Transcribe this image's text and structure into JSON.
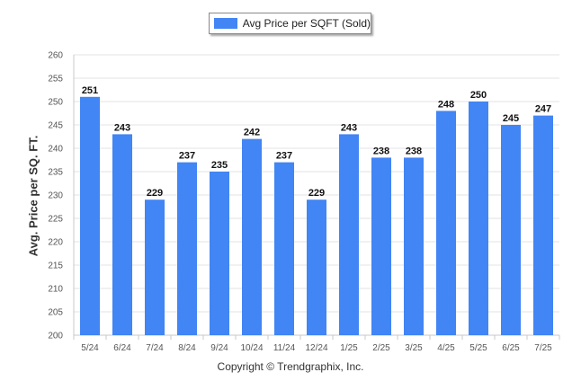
{
  "chart_data": {
    "type": "bar",
    "legend": {
      "label": "Avg Price per SQFT (Sold)",
      "placement": "top-center"
    },
    "ylabel": "Avg. Price per SQ. FT.",
    "xlabel": "",
    "ylim": [
      200,
      260
    ],
    "yticks": [
      200,
      205,
      210,
      215,
      220,
      225,
      230,
      235,
      240,
      245,
      250,
      255,
      260
    ],
    "grid": true,
    "categories": [
      "5/24",
      "6/24",
      "7/24",
      "8/24",
      "9/24",
      "10/24",
      "11/24",
      "12/24",
      "1/25",
      "2/25",
      "3/25",
      "4/25",
      "5/25",
      "6/25",
      "7/25"
    ],
    "series": [
      {
        "name": "Avg Price per SQFT (Sold)",
        "values": [
          251,
          243,
          229,
          237,
          235,
          242,
          237,
          229,
          243,
          238,
          238,
          248,
          250,
          245,
          247
        ]
      }
    ],
    "bar_color": "#4285f4",
    "footer": "Copyright © Trendgraphix, Inc."
  }
}
